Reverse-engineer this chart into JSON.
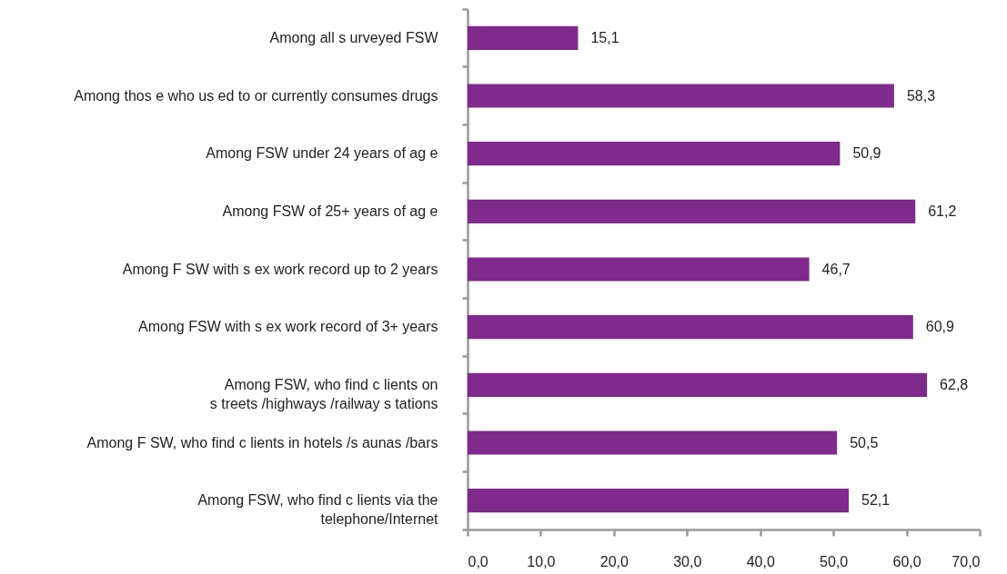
{
  "chart_data": {
    "type": "bar",
    "orientation": "horizontal",
    "categories": [
      "Among all s urveyed FSW",
      "Among thos e who us ed to or currently consumes drugs",
      "Among FSW under 24 years of ag e",
      "Among FSW of 25+ years of ag e",
      "Among F SW with s ex work record up to 2 years",
      "Among FSW with s ex work record of 3+ years",
      "Among FSW, who find c lients on\ns treets /highways /railway s tations",
      "Among F SW, who find c lients in hotels /s aunas /bars",
      "Among FSW, who find c lients via the\ntelephone/Internet"
    ],
    "values": [
      15.1,
      58.3,
      50.9,
      61.2,
      46.7,
      60.9,
      62.8,
      50.5,
      52.1
    ],
    "value_labels": [
      "15,1",
      "58,3",
      "50,9",
      "61,2",
      "46,7",
      "60,9",
      "62,8",
      "50,5",
      "52,1"
    ],
    "color": "#7f2a8c",
    "xlim": [
      0,
      70
    ],
    "xticks": [
      {
        "value": 0,
        "label": "0,0"
      },
      {
        "value": 10,
        "label": "10,0"
      },
      {
        "value": 20,
        "label": "20,0"
      },
      {
        "value": 30,
        "label": "30,0"
      },
      {
        "value": 40,
        "label": "40,0"
      },
      {
        "value": 50,
        "label": "50,0"
      },
      {
        "value": 60,
        "label": "60,0"
      },
      {
        "value": 70,
        "label": "70,0"
      }
    ]
  }
}
